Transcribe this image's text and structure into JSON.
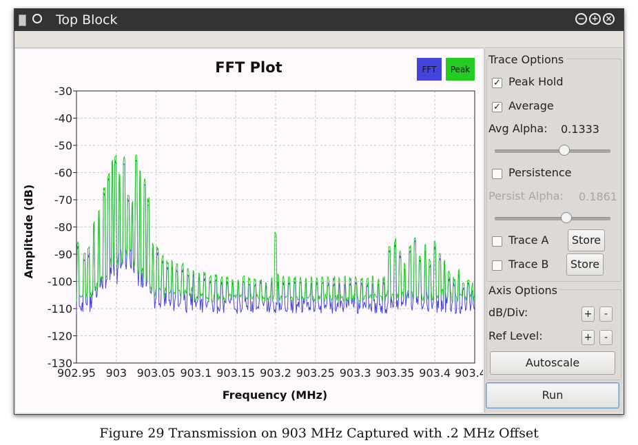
{
  "window": {
    "title": "Top Block"
  },
  "plot": {
    "title": "FFT  Plot",
    "xlabel": "Frequency (MHz)",
    "ylabel": "Amplitude (dB)",
    "legend": [
      {
        "label": "FFT",
        "color": "#4444dd"
      },
      {
        "label": "Peak",
        "color": "#22cc22"
      }
    ]
  },
  "chart_data": {
    "type": "line",
    "title": "FFT  Plot",
    "xlabel": "Frequency (MHz)",
    "ylabel": "Amplitude (dB)",
    "xlim": [
      902.95,
      903.45
    ],
    "ylim": [
      -130,
      -30
    ],
    "xticks": [
      "902.95",
      "903",
      "903.05",
      "903.1",
      "903.15",
      "903.2",
      "903.25",
      "903.3",
      "903.35",
      "903.4",
      "903.4"
    ],
    "yticks": [
      "-30",
      "-40",
      "-50",
      "-60",
      "-70",
      "-80",
      "-90",
      "-100",
      "-110",
      "-120",
      "-130"
    ],
    "grid": true,
    "legend_position": "top-right",
    "series": [
      {
        "name": "FFT",
        "color": "#4444dd",
        "peaks": [
          [
            902.952,
            -88
          ],
          [
            902.96,
            -92
          ],
          [
            902.965,
            -90
          ],
          [
            902.972,
            -80
          ],
          [
            902.978,
            -76
          ],
          [
            902.985,
            -68
          ],
          [
            902.99,
            -63
          ],
          [
            902.995,
            -57
          ],
          [
            902.999,
            -56
          ],
          [
            903.004,
            -62
          ],
          [
            903.01,
            -57
          ],
          [
            903.015,
            -70
          ],
          [
            903.02,
            -73
          ],
          [
            903.025,
            -56
          ],
          [
            903.03,
            -62
          ],
          [
            903.036,
            -65
          ],
          [
            903.04,
            -72
          ],
          [
            903.046,
            -88
          ],
          [
            903.052,
            -90
          ],
          [
            903.058,
            -93
          ],
          [
            903.064,
            -95
          ],
          [
            903.07,
            -95
          ],
          [
            903.076,
            -96
          ],
          [
            903.083,
            -96
          ],
          [
            903.09,
            -98
          ],
          [
            903.097,
            -98
          ],
          [
            903.104,
            -99
          ],
          [
            903.111,
            -99
          ],
          [
            903.118,
            -100
          ],
          [
            903.125,
            -100
          ],
          [
            903.132,
            -101
          ],
          [
            903.139,
            -101
          ],
          [
            903.146,
            -101
          ],
          [
            903.153,
            -101
          ],
          [
            903.16,
            -100
          ],
          [
            903.167,
            -101
          ],
          [
            903.174,
            -101
          ],
          [
            903.181,
            -101
          ],
          [
            903.188,
            -102
          ],
          [
            903.195,
            -101
          ],
          [
            903.203,
            -100
          ],
          [
            903.21,
            -101
          ],
          [
            903.217,
            -101
          ],
          [
            903.224,
            -101
          ],
          [
            903.231,
            -101
          ],
          [
            903.238,
            -101
          ],
          [
            903.245,
            -101
          ],
          [
            903.252,
            -101
          ],
          [
            903.259,
            -101
          ],
          [
            903.266,
            -101
          ],
          [
            903.273,
            -101
          ],
          [
            903.28,
            -101
          ],
          [
            903.287,
            -101
          ],
          [
            903.294,
            -101
          ],
          [
            903.301,
            -101
          ],
          [
            903.308,
            -101
          ],
          [
            903.315,
            -101
          ],
          [
            903.322,
            -101
          ],
          [
            903.329,
            -101
          ],
          [
            903.336,
            -101
          ],
          [
            903.343,
            -89
          ],
          [
            903.35,
            -87
          ],
          [
            903.356,
            -91
          ],
          [
            903.362,
            -95
          ],
          [
            903.369,
            -89
          ],
          [
            903.375,
            -86
          ],
          [
            903.381,
            -93
          ],
          [
            903.388,
            -89
          ],
          [
            903.394,
            -94
          ],
          [
            903.4,
            -88
          ],
          [
            903.406,
            -92
          ],
          [
            903.412,
            -94
          ],
          [
            903.418,
            -99
          ],
          [
            903.424,
            -101
          ],
          [
            903.43,
            -98
          ],
          [
            903.436,
            -103
          ],
          [
            903.442,
            -101
          ],
          [
            903.447,
            -103
          ]
        ]
      },
      {
        "name": "Peak",
        "color": "#22cc22",
        "peaks": [
          [
            903.2,
            -82
          ]
        ]
      }
    ],
    "baseline": {
      "FFT": -109,
      "Peak": -106
    }
  },
  "controls": {
    "trace_options_title": "Trace  Options",
    "peak_hold": {
      "label": "Peak  Hold",
      "checked": true
    },
    "average": {
      "label": "Average",
      "checked": true
    },
    "avg_alpha_label": "Avg  Alpha:",
    "avg_alpha_value": "0.1333",
    "persistence": {
      "label": "Persistence",
      "checked": false
    },
    "persist_alpha_label": "Persist  Alpha:",
    "persist_alpha_value": "0.1861",
    "trace_a": {
      "label": "Trace  A",
      "checked": false,
      "button": "Store"
    },
    "trace_b": {
      "label": "Trace  B",
      "checked": false,
      "button": "Store"
    },
    "axis_options_title": "Axis  Options",
    "db_div_label": "dB/Div:",
    "ref_level_label": "Ref  Level:",
    "plus": "+",
    "minus": "-",
    "autoscale": "Autoscale",
    "run": "Run",
    "avg_alpha_level": 0.6,
    "persist_alpha_level": 0.62
  },
  "caption": "Figure 29 Transmission on 903 MHz Captured with .2 MHz Offset"
}
